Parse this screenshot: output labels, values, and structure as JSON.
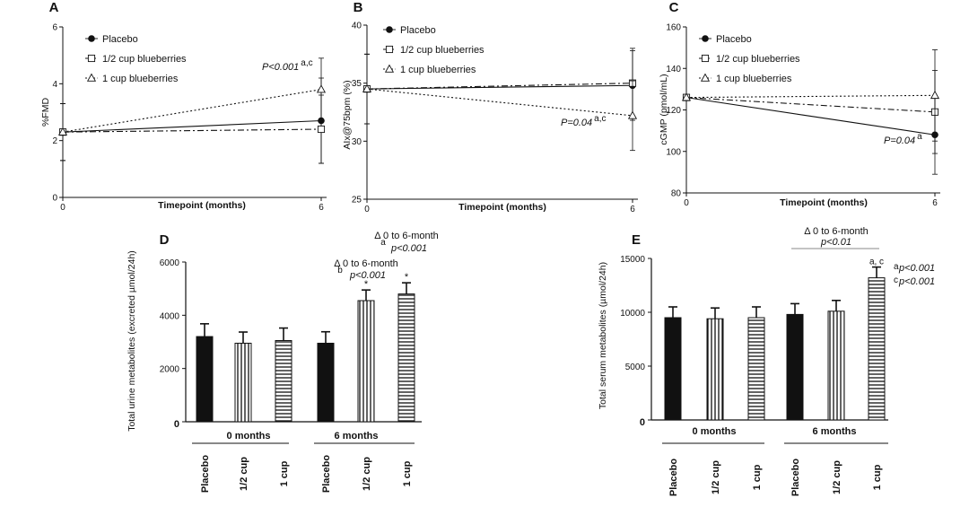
{
  "figure": {
    "background": "#ffffff",
    "ink": "#111111"
  },
  "chart_data": [
    {
      "panel": "A",
      "type": "line",
      "xlabel": "Timepoint (months)",
      "ylabel": "%FMD",
      "x": [
        0,
        6
      ],
      "xticks": [
        "0",
        "6"
      ],
      "ylim": [
        0,
        6
      ],
      "yticks": [
        "0",
        "2",
        "4",
        "6"
      ],
      "series": [
        {
          "name": "Placebo",
          "marker": "filled-circle",
          "dash": "solid",
          "values": [
            2.3,
            2.7
          ],
          "error": [
            1.0,
            1.5
          ]
        },
        {
          "name": "1/2 cup blueberries",
          "marker": "open-square",
          "dash": "dashdot",
          "values": [
            2.3,
            2.4
          ],
          "error": [
            1.0,
            1.2
          ]
        },
        {
          "name": "1 cup blueberries",
          "marker": "open-triangle",
          "dash": "dotted",
          "values": [
            2.3,
            3.8
          ],
          "error": [
            1.0,
            1.1
          ]
        }
      ],
      "annotation": {
        "text": "P<0.001",
        "sup": "a,c"
      }
    },
    {
      "panel": "B",
      "type": "line",
      "xlabel": "Timepoint (months)",
      "ylabel": "AIx@75bpm (%)",
      "x": [
        0,
        6
      ],
      "xticks": [
        "0",
        "6"
      ],
      "ylim": [
        25,
        40
      ],
      "yticks": [
        "25",
        "30",
        "35",
        "40"
      ],
      "series": [
        {
          "name": "Placebo",
          "marker": "filled-circle",
          "dash": "solid",
          "values": [
            34.5,
            34.8
          ],
          "error": [
            3.0,
            3.0
          ]
        },
        {
          "name": "1/2 cup blueberries",
          "marker": "open-square",
          "dash": "dashdot",
          "values": [
            34.5,
            35.0
          ],
          "error": [
            3.0,
            3.0
          ]
        },
        {
          "name": "1 cup blueberries",
          "marker": "open-triangle",
          "dash": "dotted",
          "values": [
            34.5,
            32.2
          ],
          "error": [
            3.0,
            3.0
          ]
        }
      ],
      "annotation": {
        "text": "P=0.04",
        "sup": "a,c"
      }
    },
    {
      "panel": "C",
      "type": "line",
      "xlabel": "Timepoint (months)",
      "ylabel": "cGMP (pmol/mL)",
      "x": [
        0,
        6
      ],
      "xticks": [
        "0",
        "6"
      ],
      "ylim": [
        80,
        160
      ],
      "yticks": [
        "80",
        "100",
        "120",
        "140",
        "160"
      ],
      "series": [
        {
          "name": "Placebo",
          "marker": "filled-circle",
          "dash": "solid",
          "values": [
            126,
            108
          ],
          "error": [
            0,
            19
          ]
        },
        {
          "name": "1/2 cup blueberries",
          "marker": "open-square",
          "dash": "dashdot",
          "values": [
            126,
            119
          ],
          "error": [
            0,
            20
          ]
        },
        {
          "name": "1 cup blueberries",
          "marker": "open-triangle",
          "dash": "dotted",
          "values": [
            126,
            127
          ],
          "error": [
            0,
            22
          ]
        }
      ],
      "annotation": {
        "text": "P=0.04",
        "sup": "a"
      }
    },
    {
      "panel": "D",
      "type": "bar",
      "ylabel": "Total urine metabolites (excreted µmol/24h)",
      "ylim": [
        0,
        6000
      ],
      "yticks": [
        "0",
        "2000",
        "4000",
        "6000"
      ],
      "categories": [
        "Placebo",
        "1/2 cup",
        "1 cup",
        "Placebo",
        "1/2 cup",
        "1 cup"
      ],
      "values": [
        3200,
        2950,
        3050,
        2950,
        4550,
        4800
      ],
      "errors": [
        480,
        420,
        470,
        430,
        400,
        420
      ],
      "fills": [
        "solid",
        "vertical",
        "horizontal",
        "solid",
        "vertical",
        "horizontal"
      ],
      "stars": [
        "",
        "",
        "",
        "",
        "*",
        "*"
      ],
      "groups": [
        "0 months",
        "6 months"
      ],
      "annotations": [
        {
          "line1": "Δ 0 to 6-month",
          "sup": "b",
          "line2": "p<0.001"
        },
        {
          "line1": "Δ 0 to 6-month",
          "sup": "a",
          "line2": "p<0.001"
        }
      ]
    },
    {
      "panel": "E",
      "type": "bar",
      "ylabel": "Total serum metabolites (µmol/24h)",
      "ylim": [
        0,
        15000
      ],
      "yticks": [
        "0",
        "5000",
        "10000",
        "15000"
      ],
      "categories": [
        "Placebo",
        "1/2 cup",
        "1 cup",
        "Placebo",
        "1/2 cup",
        "1 cup"
      ],
      "values": [
        9500,
        9400,
        9500,
        9800,
        10100,
        13200
      ],
      "errors": [
        1000,
        1000,
        1000,
        1000,
        1000,
        1000
      ],
      "fills": [
        "solid",
        "vertical",
        "horizontal",
        "solid",
        "vertical",
        "horizontal"
      ],
      "top_marks": [
        "",
        "",
        "",
        "",
        "",
        "a, c"
      ],
      "groups": [
        "0 months",
        "6 months"
      ],
      "bracket": {
        "line1": "Δ 0 to 6-month",
        "line2": "p<0.01"
      },
      "annotations": [
        {
          "sup": "a",
          "text": "p<0.001"
        },
        {
          "sup": "c",
          "text": "p<0.001"
        }
      ]
    }
  ]
}
